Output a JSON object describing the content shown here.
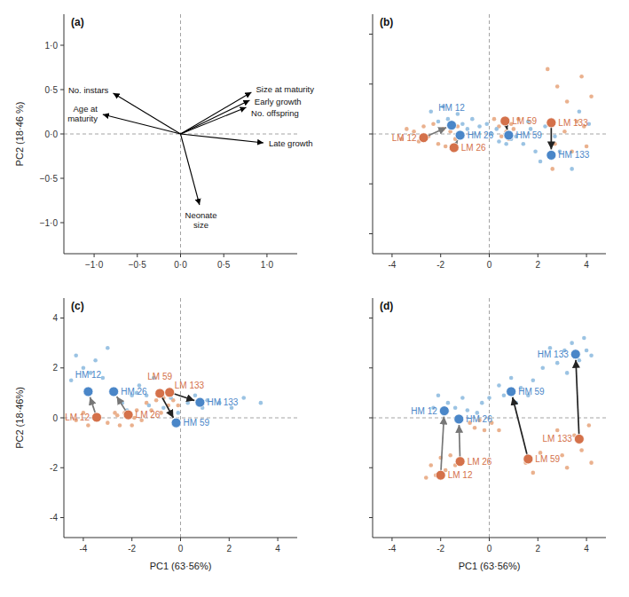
{
  "chart_data": [
    {
      "type": "vector",
      "title": "(a)",
      "ylabel": "PC2 (18·46 %)",
      "color": "#000000",
      "labels": [
        "No. instars",
        "Age at\nmaturity",
        "Size at maturity",
        "Early growth",
        "No. offspring",
        "Late growth",
        "Neonate\nsize"
      ],
      "x": [
        -0.78,
        -0.9,
        0.82,
        0.8,
        0.76,
        0.96,
        0.22
      ],
      "values": [
        0.46,
        0.22,
        0.47,
        0.38,
        0.3,
        -0.1,
        -0.8
      ],
      "xlim": [
        -1.35,
        1.35
      ],
      "ylim": [
        -1.35,
        1.35
      ],
      "xticks": [
        {
          "value": -1.0,
          "label": "−1·0"
        },
        {
          "value": -0.5,
          "label": "−0·5"
        },
        {
          "value": 0.0,
          "label": "0·0"
        },
        {
          "value": 0.5,
          "label": "0·5"
        },
        {
          "value": 1.0,
          "label": "1·0"
        }
      ],
      "yticks": [
        {
          "value": -1.0,
          "label": "−1·0"
        },
        {
          "value": -0.5,
          "label": "−0·5"
        },
        {
          "value": 0.0,
          "label": "0·0"
        },
        {
          "value": 0.5,
          "label": "0·5"
        },
        {
          "value": 1.0,
          "label": "1·0"
        }
      ]
    },
    {
      "type": "scatter",
      "title": "(b)",
      "tick_labels": "x",
      "xlim": [
        -4.8,
        4.8
      ],
      "ylim": [
        -4.8,
        4.8
      ],
      "xticks": [
        -4,
        -2,
        0,
        2,
        4
      ],
      "yticks": [
        -4,
        -2,
        0,
        2,
        4
      ],
      "series": [
        {
          "color": "#E8A882",
          "x": [
            -3.6,
            -3.4,
            -3.1,
            -2.9,
            -2.7,
            -2.5,
            -2.3,
            -2.1,
            -1.9,
            -1.8,
            -1.6,
            -1.4,
            -1.3,
            0.2,
            0.4,
            0.6,
            0.7,
            0.9,
            1.0,
            1.2,
            0.8,
            0.5,
            2.4,
            2.8,
            3.2,
            3.6,
            3.1,
            2.7,
            3.4,
            3.9,
            2.6,
            3.8,
            4.2,
            4.0
          ],
          "values": [
            -0.2,
            0.2,
            0.1,
            -0.3,
            0.3,
            -0.1,
            0.4,
            -0.4,
            0.2,
            -0.5,
            0.1,
            -0.2,
            0.3,
            0.6,
            0.3,
            0.5,
            0.1,
            0.4,
            0.2,
            0.6,
            -0.2,
            -0.1,
            2.6,
            1.9,
            1.3,
            0.5,
            0.1,
            -0.4,
            -0.7,
            0.3,
            -1.4,
            2.3,
            1.5,
            -0.5
          ]
        },
        {
          "color": "#90BCE0",
          "x": [
            -2.4,
            -2.1,
            -1.9,
            -1.7,
            -1.5,
            -1.3,
            -1.1,
            -0.9,
            -0.7,
            -0.4,
            -0.1,
            0.1,
            0.3,
            0.4,
            0.7,
            0.9,
            1.1,
            1.4,
            1.9,
            1.7,
            2.1,
            2.9,
            3.4,
            2.7,
            4.1,
            3.7,
            1.6,
            2.3
          ],
          "values": [
            0.9,
            0.5,
            1.1,
            0.6,
            0.3,
            0.8,
            0.4,
            0.2,
            0.6,
            0.3,
            0.4,
            -0.0,
            0.2,
            -0.3,
            -0.4,
            -0.2,
            -0.1,
            -0.4,
            -0.7,
            0.2,
            -1.1,
            -0.7,
            -1.4,
            -0.1,
            0.4,
            0.9,
            0.5,
            0.3
          ]
        },
        {
          "labels": [
            "LM 12",
            "HM 12",
            "LM 26",
            "HM 26",
            "LM 59",
            "HM 59",
            "LM 133",
            "HM 133"
          ],
          "colors": [
            "#D4714A",
            "#4A86C8",
            "#D4714A",
            "#4A86C8",
            "#D4714A",
            "#4A86C8",
            "#D4714A",
            "#4A86C8"
          ],
          "x": [
            -2.7,
            -1.55,
            -1.45,
            -1.2,
            0.65,
            0.8,
            2.55,
            2.55
          ],
          "values": [
            -0.15,
            0.35,
            -0.55,
            -0.05,
            0.52,
            -0.05,
            0.45,
            -0.85
          ]
        }
      ],
      "arrows": [
        {
          "from": "LM 12",
          "to": "HM 12",
          "color": "#777777"
        },
        {
          "from": "LM 26",
          "to": "HM 26",
          "color": "#777777"
        },
        {
          "from": "LM 59",
          "to": "HM 59",
          "color": "#222222"
        },
        {
          "from": "LM 133",
          "to": "HM 133",
          "color": "#222222"
        }
      ]
    },
    {
      "type": "scatter",
      "title": "(c)",
      "xlabel": "PC1 (63·56%)",
      "ylabel": "PC2 (18·46%)",
      "xlim": [
        -4.8,
        4.8
      ],
      "ylim": [
        -4.8,
        4.8
      ],
      "xticks": [
        -4,
        -2,
        0,
        2,
        4
      ],
      "yticks": [
        -4,
        -2,
        0,
        2,
        4
      ],
      "series": [
        {
          "color": "#E8A882",
          "x": [
            -4.3,
            -4.0,
            -3.8,
            -3.0,
            -2.7,
            -2.5,
            -2.3,
            -1.9,
            -1.8,
            -1.6,
            -1.4,
            -1.2,
            -1.0,
            -0.8,
            -0.7,
            -0.5,
            -0.3,
            -0.1,
            -2.0,
            -2.6
          ],
          "values": [
            -0.1,
            0.2,
            -0.3,
            -0.2,
            0.2,
            -0.3,
            0.2,
            0.0,
            0.3,
            -0.1,
            0.6,
            0.3,
            0.7,
            0.2,
            0.8,
            0.5,
            0.7,
            0.5,
            -0.3,
            0.1
          ]
        },
        {
          "color": "#90BCE0",
          "x": [
            -4.5,
            -4.3,
            -4.0,
            -3.7,
            -3.5,
            -3.2,
            -3.0,
            -2.4,
            -2.2,
            -2.0,
            -1.7,
            -1.4,
            -1.1,
            -0.7,
            -0.4,
            -0.1,
            0.3,
            0.6,
            0.9,
            1.1,
            1.6,
            2.1,
            2.6,
            3.3,
            -1.8,
            -1.3
          ],
          "values": [
            1.5,
            2.5,
            2.0,
            1.8,
            2.3,
            1.6,
            2.8,
            0.6,
            0.3,
            0.9,
            1.3,
            0.9,
            1.6,
            0.4,
            0.8,
            0.2,
            0.6,
            0.9,
            0.4,
            0.7,
            0.6,
            0.4,
            0.8,
            0.6,
            1.0,
            0.5
          ]
        },
        {
          "labels": [
            "HM 12",
            "HM 26",
            "LM 59",
            "LM 133",
            "LM 12",
            "LM 26",
            "HM 59",
            "HM 133"
          ],
          "colors": [
            "#4A86C8",
            "#4A86C8",
            "#D4714A",
            "#D4714A",
            "#D4714A",
            "#D4714A",
            "#4A86C8",
            "#4A86C8"
          ],
          "x": [
            -3.8,
            -2.75,
            -0.85,
            -0.45,
            -3.45,
            -2.15,
            -0.18,
            0.8
          ],
          "values": [
            1.05,
            1.05,
            0.98,
            1.02,
            0.02,
            0.12,
            -0.2,
            0.62
          ]
        }
      ],
      "arrows": [
        {
          "from": "LM 12",
          "to": "HM 12",
          "color": "#777777"
        },
        {
          "from": "LM 26",
          "to": "HM 26",
          "color": "#777777"
        },
        {
          "from": "LM 59",
          "to": "HM 59",
          "color": "#222222"
        },
        {
          "from": "LM 133",
          "to": "HM 133",
          "color": "#222222"
        }
      ]
    },
    {
      "type": "scatter",
      "title": "(d)",
      "xlabel": "PC1 (63·56%)",
      "tick_labels": "x",
      "xlim": [
        -4.8,
        4.8
      ],
      "ylim": [
        -4.8,
        4.8
      ],
      "xticks": [
        -4,
        -2,
        0,
        2,
        4
      ],
      "yticks": [
        -4,
        -2,
        0,
        2,
        4
      ],
      "series": [
        {
          "color": "#E8A882",
          "x": [
            -2.6,
            -2.4,
            -2.2,
            -2.0,
            -1.8,
            -1.6,
            -1.4,
            -0.8,
            -0.6,
            -0.4,
            -0.2,
            0.1,
            0.4,
            1.5,
            1.8,
            2.1,
            3.5,
            3.8,
            4.1,
            4.2,
            3.2,
            2.8,
            3.0
          ],
          "values": [
            -2.4,
            -1.9,
            -2.3,
            -1.6,
            -2.1,
            -1.5,
            -1.9,
            -0.2,
            -0.4,
            -0.1,
            -0.5,
            -0.2,
            -0.5,
            -1.8,
            -2.2,
            -1.4,
            -0.7,
            -1.3,
            -0.3,
            -1.8,
            -2.0,
            -0.5,
            -1.5
          ]
        },
        {
          "color": "#90BCE0",
          "x": [
            -2.3,
            -2.1,
            -1.9,
            -1.7,
            -1.4,
            -1.1,
            -0.9,
            -0.5,
            -0.3,
            0.0,
            0.4,
            0.6,
            0.9,
            1.1,
            1.3,
            1.6,
            1.8,
            2.8,
            3.1,
            3.4,
            3.7,
            4.0,
            3.2,
            3.9,
            4.2,
            2.5,
            2.2
          ],
          "values": [
            0.4,
            0.9,
            0.2,
            0.6,
            0.4,
            0.8,
            0.3,
            0.2,
            0.6,
            0.8,
            1.3,
            0.9,
            1.6,
            0.6,
            1.2,
            0.9,
            1.5,
            2.2,
            2.7,
            3.0,
            2.3,
            2.7,
            1.8,
            3.2,
            2.5,
            2.8,
            2.0
          ]
        },
        {
          "labels": [
            "HM 12",
            "HM 26",
            "LM 12",
            "LM 26",
            "HM 59",
            "LM 59",
            "HM 133",
            "LM 133"
          ],
          "colors": [
            "#4A86C8",
            "#4A86C8",
            "#D4714A",
            "#D4714A",
            "#4A86C8",
            "#D4714A",
            "#4A86C8",
            "#D4714A"
          ],
          "x": [
            -1.85,
            -1.25,
            -2.0,
            -1.2,
            0.9,
            1.6,
            3.55,
            3.7
          ],
          "values": [
            0.28,
            -0.05,
            -2.3,
            -1.75,
            1.05,
            -1.65,
            2.55,
            -0.85
          ]
        }
      ],
      "arrows": [
        {
          "from": "LM 12",
          "to": "HM 12",
          "color": "#777777"
        },
        {
          "from": "LM 26",
          "to": "HM 26",
          "color": "#777777"
        },
        {
          "from": "LM 59",
          "to": "HM 59",
          "color": "#222222"
        },
        {
          "from": "LM 133",
          "to": "HM 133",
          "color": "#222222"
        }
      ]
    }
  ]
}
